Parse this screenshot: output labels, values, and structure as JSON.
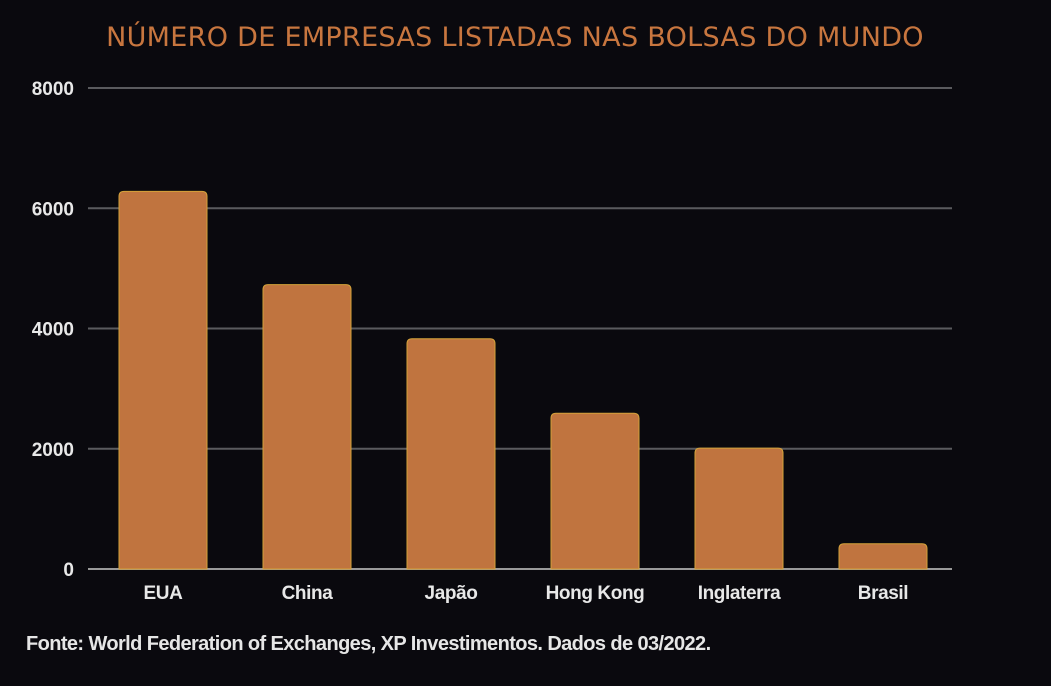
{
  "chart_data": {
    "type": "bar",
    "title": "NÚMERO DE EMPRESAS LISTADAS NAS BOLSAS DO MUNDO",
    "categories": [
      "EUA",
      "China",
      "Japão",
      "Hong Kong",
      "Inglaterra",
      "Brasil"
    ],
    "values": [
      6280,
      4730,
      3830,
      2590,
      2010,
      420
    ],
    "ylim": [
      0,
      8000
    ],
    "yticks": [
      "0",
      "2000",
      "4000",
      "6000",
      "8000"
    ],
    "grid": true,
    "bar_color": "#c0743f",
    "title_color": "#c8763f",
    "background": "#0a090e"
  },
  "source": "Fonte: World Federation of Exchanges, XP Investimentos. Dados de 03/2022."
}
